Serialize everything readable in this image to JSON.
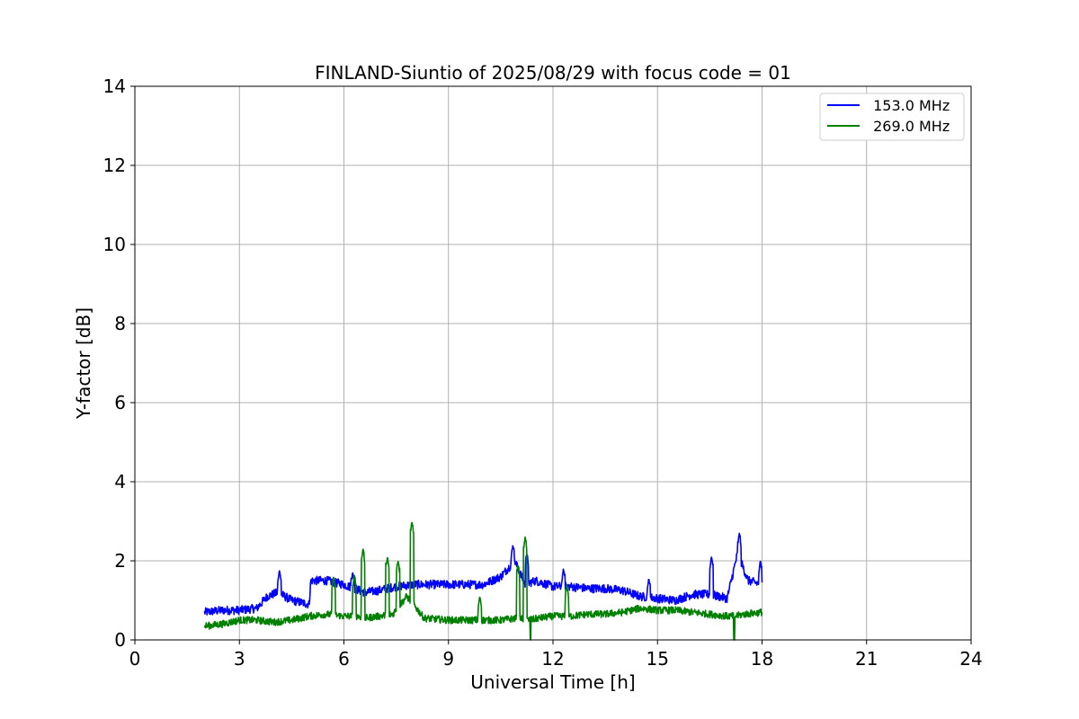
{
  "chart_data": {
    "type": "line",
    "title": "FINLAND-Siuntio of 2025/08/29 with focus code = 01",
    "xlabel": "Universal Time [h]",
    "ylabel": "Y-factor [dB]",
    "xlim": [
      0,
      24
    ],
    "ylim": [
      0,
      14
    ],
    "xticks": [
      0,
      3,
      6,
      9,
      12,
      15,
      18,
      21,
      24
    ],
    "yticks": [
      0,
      2,
      4,
      6,
      8,
      10,
      12,
      14
    ],
    "grid": true,
    "legend_position": "top-right",
    "series": [
      {
        "name": " 153.0 MHz",
        "color": "#0000ff",
        "x": [
          2.0,
          2.5,
          3.0,
          3.5,
          3.8,
          4.1,
          4.5,
          5.0,
          5.05,
          5.5,
          6.0,
          6.3,
          6.6,
          7.0,
          7.5,
          8.0,
          8.5,
          9.0,
          9.5,
          10.0,
          10.5,
          10.9,
          11.2,
          11.5,
          12.0,
          12.5,
          13.0,
          13.5,
          14.0,
          14.5,
          15.0,
          15.5,
          16.0,
          16.5,
          17.0,
          17.3,
          17.6,
          18.0
        ],
        "y": [
          0.7,
          0.75,
          0.75,
          0.8,
          1.1,
          1.2,
          1.0,
          0.9,
          1.5,
          1.5,
          1.4,
          1.3,
          1.2,
          1.25,
          1.35,
          1.4,
          1.4,
          1.4,
          1.4,
          1.4,
          1.6,
          2.0,
          1.4,
          1.5,
          1.35,
          1.35,
          1.3,
          1.3,
          1.25,
          1.1,
          1.05,
          1.0,
          1.15,
          1.15,
          1.05,
          2.2,
          1.5,
          1.4
        ]
      },
      {
        "name": " 269.0 MHz",
        "color": "#008000",
        "x": [
          2.0,
          2.5,
          3.0,
          3.5,
          4.0,
          4.5,
          5.0,
          5.5,
          6.0,
          6.4,
          6.6,
          7.0,
          7.4,
          7.8,
          8.0,
          8.3,
          9.0,
          9.5,
          10.0,
          10.5,
          11.0,
          11.3,
          11.6,
          12.0,
          12.5,
          13.0,
          13.5,
          14.0,
          14.5,
          15.0,
          15.5,
          16.0,
          16.5,
          17.0,
          17.2,
          17.5,
          18.0
        ],
        "y": [
          0.35,
          0.4,
          0.5,
          0.5,
          0.45,
          0.5,
          0.6,
          0.65,
          0.6,
          0.6,
          0.55,
          0.6,
          0.65,
          1.1,
          0.9,
          0.55,
          0.5,
          0.5,
          0.5,
          0.5,
          0.55,
          0.5,
          0.55,
          0.6,
          0.6,
          0.65,
          0.65,
          0.7,
          0.8,
          0.75,
          0.75,
          0.7,
          0.65,
          0.6,
          0.6,
          0.65,
          0.7
        ]
      }
    ],
    "spikes": [
      {
        "series": 0,
        "x": 4.15,
        "y": 1.75
      },
      {
        "series": 0,
        "x": 6.25,
        "y": 1.7
      },
      {
        "series": 0,
        "x": 10.85,
        "y": 2.4
      },
      {
        "series": 0,
        "x": 11.25,
        "y": 2.2
      },
      {
        "series": 0,
        "x": 12.3,
        "y": 1.8
      },
      {
        "series": 0,
        "x": 14.75,
        "y": 1.55
      },
      {
        "series": 0,
        "x": 16.55,
        "y": 2.1
      },
      {
        "series": 0,
        "x": 17.35,
        "y": 2.7
      },
      {
        "series": 0,
        "x": 17.95,
        "y": 2.0
      },
      {
        "series": 1,
        "x": 5.7,
        "y": 1.6
      },
      {
        "series": 1,
        "x": 6.3,
        "y": 1.65
      },
      {
        "series": 1,
        "x": 6.55,
        "y": 2.3
      },
      {
        "series": 1,
        "x": 7.25,
        "y": 2.1
      },
      {
        "series": 1,
        "x": 7.55,
        "y": 2.0
      },
      {
        "series": 1,
        "x": 7.95,
        "y": 3.0
      },
      {
        "series": 1,
        "x": 9.9,
        "y": 1.1
      },
      {
        "series": 1,
        "x": 11.0,
        "y": 1.9
      },
      {
        "series": 1,
        "x": 11.2,
        "y": 2.6
      },
      {
        "series": 1,
        "x": 12.4,
        "y": 1.4
      }
    ],
    "dips": [
      {
        "series": 1,
        "x": 11.35,
        "y": 0.0
      },
      {
        "series": 1,
        "x": 17.2,
        "y": 0.0
      }
    ]
  }
}
